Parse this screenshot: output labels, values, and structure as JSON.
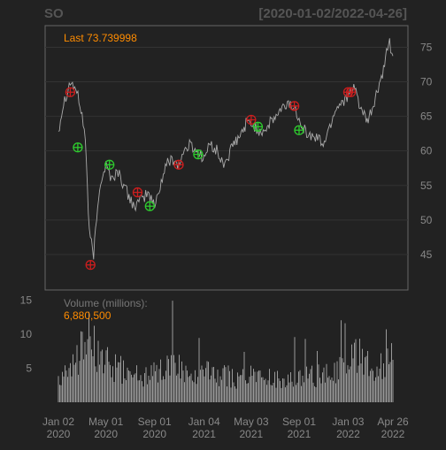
{
  "chart_data": {
    "type": "line",
    "title": "SO",
    "date_range": "[2020-01-02/2022-04-26]",
    "last_label": "Last 73.739998",
    "price_axis": {
      "ylim": [
        40,
        78
      ],
      "ticks": [
        45,
        50,
        55,
        60,
        65,
        70,
        75
      ],
      "position": "right",
      "grid": true
    },
    "volume_axis": {
      "ylim": [
        0,
        16
      ],
      "ticks": [
        5,
        10,
        15
      ],
      "position": "left"
    },
    "volume_label": "Volume (millions):",
    "volume_last": "6,880,500",
    "x_ticks": [
      {
        "date": "2020-01-02",
        "label": [
          "Jan 02",
          "2020"
        ]
      },
      {
        "date": "2020-05-01",
        "label": [
          "May 01",
          "2020"
        ]
      },
      {
        "date": "2020-09-01",
        "label": [
          "Sep 01",
          "2020"
        ]
      },
      {
        "date": "2021-01-04",
        "label": [
          "Jan 04",
          "2021"
        ]
      },
      {
        "date": "2021-05-03",
        "label": [
          "May 03",
          "2021"
        ]
      },
      {
        "date": "2021-09-01",
        "label": [
          "Sep 01",
          "2021"
        ]
      },
      {
        "date": "2022-01-03",
        "label": [
          "Jan 03",
          "2022"
        ]
      },
      {
        "date": "2022-04-26",
        "label": [
          "Apr 26",
          "2022"
        ]
      }
    ],
    "price_series": {
      "dates": [
        "2020-01-02",
        "2020-01-15",
        "2020-02-01",
        "2020-02-15",
        "2020-02-28",
        "2020-03-10",
        "2020-03-20",
        "2020-03-31",
        "2020-04-15",
        "2020-05-01",
        "2020-05-15",
        "2020-06-01",
        "2020-06-15",
        "2020-07-01",
        "2020-07-15",
        "2020-08-01",
        "2020-08-15",
        "2020-09-01",
        "2020-09-15",
        "2020-10-01",
        "2020-10-15",
        "2020-11-01",
        "2020-11-15",
        "2020-12-01",
        "2020-12-15",
        "2021-01-04",
        "2021-01-20",
        "2021-02-05",
        "2021-02-20",
        "2021-03-05",
        "2021-03-20",
        "2021-04-05",
        "2021-04-20",
        "2021-05-03",
        "2021-05-20",
        "2021-06-05",
        "2021-06-20",
        "2021-07-05",
        "2021-07-20",
        "2021-08-05",
        "2021-08-20",
        "2021-09-01",
        "2021-09-15",
        "2021-10-01",
        "2021-10-15",
        "2021-11-01",
        "2021-11-15",
        "2021-12-01",
        "2021-12-15",
        "2022-01-03",
        "2022-01-20",
        "2022-02-05",
        "2022-02-20",
        "2022-03-05",
        "2022-03-20",
        "2022-04-05",
        "2022-04-15",
        "2022-04-26"
      ],
      "values": [
        63,
        67,
        70,
        69,
        66,
        62,
        48,
        45,
        55,
        58,
        56,
        57,
        55,
        53,
        52,
        53,
        54,
        52,
        55,
        58,
        59,
        58,
        60,
        61,
        60,
        59,
        61,
        60,
        58,
        59,
        61,
        62,
        64,
        64,
        63,
        63,
        64,
        65,
        66,
        67,
        66,
        65,
        63,
        62,
        62,
        61,
        63,
        66,
        67,
        68,
        69,
        66,
        64,
        66,
        69,
        72,
        76,
        73.74
      ]
    },
    "markers": [
      {
        "date": "2020-02-01",
        "value": 68.5,
        "color": "#cc1e1e"
      },
      {
        "date": "2020-02-20",
        "value": 60.5,
        "color": "#2ecc2e"
      },
      {
        "date": "2020-03-23",
        "value": 43.5,
        "color": "#cc1e1e"
      },
      {
        "date": "2020-05-10",
        "value": 58,
        "color": "#2ecc2e"
      },
      {
        "date": "2020-07-20",
        "value": 54,
        "color": "#cc1e1e"
      },
      {
        "date": "2020-08-20",
        "value": 52,
        "color": "#2ecc2e"
      },
      {
        "date": "2020-11-01",
        "value": 58,
        "color": "#cc1e1e"
      },
      {
        "date": "2020-12-20",
        "value": 59.5,
        "color": "#2ecc2e"
      },
      {
        "date": "2021-05-03",
        "value": 64.5,
        "color": "#cc1e1e"
      },
      {
        "date": "2021-05-20",
        "value": 63.5,
        "color": "#2ecc2e"
      },
      {
        "date": "2021-08-20",
        "value": 66.5,
        "color": "#cc1e1e"
      },
      {
        "date": "2021-09-01",
        "value": 63,
        "color": "#2ecc2e"
      },
      {
        "date": "2022-01-03",
        "value": 68.5,
        "color": "#cc1e1e"
      },
      {
        "date": "2022-01-10",
        "value": 68.5,
        "color": "#cc1e1e"
      }
    ],
    "volume_series": {
      "dates": [
        "2020-01-02",
        "2020-02-01",
        "2020-03-01",
        "2020-03-20",
        "2020-04-10",
        "2020-05-01",
        "2020-06-01",
        "2020-07-01",
        "2020-08-01",
        "2020-09-01",
        "2020-10-01",
        "2020-11-01",
        "2020-12-01",
        "2021-01-04",
        "2021-02-01",
        "2021-03-01",
        "2021-04-01",
        "2021-05-03",
        "2021-06-01",
        "2021-07-01",
        "2021-08-01",
        "2021-09-01",
        "2021-10-01",
        "2021-11-01",
        "2021-12-01",
        "2022-01-03",
        "2022-02-01",
        "2022-03-01",
        "2022-04-01",
        "2022-04-26"
      ],
      "values": [
        4,
        5,
        8,
        11,
        7,
        6,
        5,
        4.5,
        4,
        4.5,
        5,
        5,
        4.5,
        4.5,
        4,
        4,
        3.5,
        4,
        4,
        3.5,
        3.5,
        3.5,
        4,
        4,
        4.5,
        6,
        7,
        6,
        5,
        6.88
      ]
    },
    "colors": {
      "background": "#222222",
      "panel_border": "#666666",
      "price_line": "#aaaaaa",
      "accent": "#ff8c00",
      "volume_bars": "#9a9a9a",
      "axis_text": "#888888",
      "grid": "#333333"
    }
  }
}
